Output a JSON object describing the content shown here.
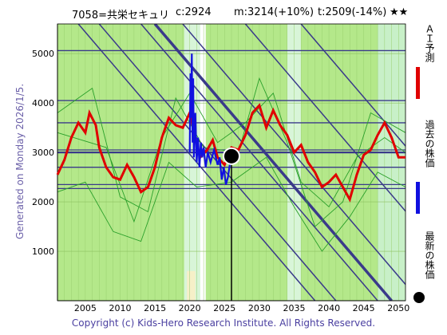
{
  "header": {
    "code_name": "7058=共栄セキュリ",
    "current": "c:2924",
    "mid": "m:3214(+10%)",
    "target": "t:2509(-14%)",
    "stars": "★★"
  },
  "side_text": "Generated on Monday 2026/1/5.",
  "footer": "Copyright (c) Kids-Hero Research Institute. All Rights Reserved.",
  "legend": {
    "ai_forecast": "ＡＩ予測",
    "past_price": "過去の株価",
    "latest_price": "最新の株価",
    "ai_color": "#e00000",
    "past_color": "#1010e0",
    "latest_color": "#000000"
  },
  "chart_data": {
    "type": "line",
    "xlim": [
      2001,
      2051
    ],
    "ylim": [
      0,
      5600
    ],
    "x_ticks": [
      2005,
      2010,
      2015,
      2020,
      2025,
      2030,
      2035,
      2040,
      2045,
      2050
    ],
    "y_ticks": [
      1000,
      2000,
      3000,
      4000,
      5000
    ],
    "grid": true,
    "latest_point": {
      "x": 2026.0,
      "y": 2924
    },
    "horizontal_levels": [
      5060,
      4050,
      3600,
      3050,
      3000,
      2700,
      2350,
      2270
    ],
    "past_price": [
      [
        2020.0,
        3000
      ],
      [
        2020.1,
        4600
      ],
      [
        2020.2,
        3700
      ],
      [
        2020.3,
        5000
      ],
      [
        2020.4,
        3200
      ],
      [
        2020.5,
        4500
      ],
      [
        2020.6,
        2900
      ],
      [
        2020.8,
        3800
      ],
      [
        2021.0,
        2800
      ],
      [
        2021.2,
        3300
      ],
      [
        2021.4,
        2700
      ],
      [
        2021.6,
        3200
      ],
      [
        2021.8,
        2900
      ],
      [
        2022.0,
        3100
      ],
      [
        2022.3,
        2700
      ],
      [
        2022.6,
        3000
      ],
      [
        2023.0,
        2800
      ],
      [
        2023.5,
        3050
      ],
      [
        2024.0,
        2750
      ],
      [
        2024.3,
        2900
      ],
      [
        2024.6,
        2450
      ],
      [
        2024.9,
        2700
      ],
      [
        2025.2,
        2350
      ],
      [
        2025.5,
        2500
      ],
      [
        2025.8,
        2800
      ],
      [
        2026.0,
        2924
      ]
    ],
    "ai_forecast": [
      [
        2001,
        2550
      ],
      [
        2002,
        2850
      ],
      [
        2003,
        3300
      ],
      [
        2004,
        3600
      ],
      [
        2005,
        3400
      ],
      [
        2005.6,
        3800
      ],
      [
        2006.5,
        3550
      ],
      [
        2007,
        3100
      ],
      [
        2008,
        2700
      ],
      [
        2009,
        2500
      ],
      [
        2010,
        2450
      ],
      [
        2011,
        2750
      ],
      [
        2012,
        2500
      ],
      [
        2013,
        2200
      ],
      [
        2014,
        2300
      ],
      [
        2015,
        2700
      ],
      [
        2016,
        3300
      ],
      [
        2017,
        3700
      ],
      [
        2018,
        3550
      ],
      [
        2019,
        3500
      ],
      [
        2020,
        3800
      ],
      [
        2020.8,
        3300
      ],
      [
        2021.5,
        2900
      ],
      [
        2022.5,
        3050
      ],
      [
        2023.3,
        3250
      ],
      [
        2024,
        2900
      ],
      [
        2025,
        2750
      ],
      [
        2026,
        3100
      ],
      [
        2027,
        3050
      ],
      [
        2028,
        3350
      ],
      [
        2029,
        3800
      ],
      [
        2030,
        3950
      ],
      [
        2031,
        3500
      ],
      [
        2032,
        3850
      ],
      [
        2033,
        3550
      ],
      [
        2034,
        3350
      ],
      [
        2035,
        3000
      ],
      [
        2036,
        3150
      ],
      [
        2037,
        2800
      ],
      [
        2038,
        2600
      ],
      [
        2039,
        2300
      ],
      [
        2040,
        2400
      ],
      [
        2041,
        2550
      ],
      [
        2042,
        2300
      ],
      [
        2043,
        2050
      ],
      [
        2044,
        2550
      ],
      [
        2045,
        2950
      ],
      [
        2046,
        3050
      ],
      [
        2047,
        3350
      ],
      [
        2048,
        3600
      ],
      [
        2049,
        3300
      ],
      [
        2050,
        2900
      ],
      [
        2051,
        2900
      ]
    ]
  }
}
